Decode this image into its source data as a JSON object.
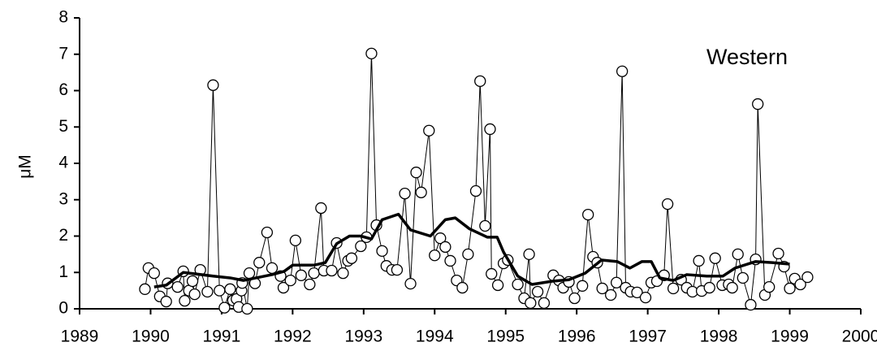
{
  "chart_data": {
    "type": "line",
    "annotation": "Western",
    "ylabel": "μM",
    "xlim": [
      1989,
      2000
    ],
    "xticks": [
      1989,
      1990,
      1991,
      1992,
      1993,
      1994,
      1995,
      1996,
      1997,
      1998,
      1999,
      2000
    ],
    "ylim": [
      0,
      8
    ],
    "yticks": [
      0,
      1,
      2,
      3,
      4,
      5,
      6,
      7,
      8
    ],
    "grid": false,
    "series": [
      {
        "color": "#000000",
        "marker": "circle",
        "line_width": 1,
        "x": [
          1989.92,
          1989.97,
          1990.05,
          1990.13,
          1990.22,
          1990.24,
          1990.38,
          1990.46,
          1990.48,
          1990.54,
          1990.59,
          1990.62,
          1990.7,
          1990.8,
          1990.88,
          1990.97,
          1991.04,
          1991.12,
          1991.16,
          1991.21,
          1991.24,
          1991.28,
          1991.29,
          1991.36,
          1991.39,
          1991.47,
          1991.53,
          1991.64,
          1991.71,
          1991.83,
          1991.87,
          1991.97,
          1992.04,
          1992.12,
          1992.24,
          1992.3,
          1992.4,
          1992.44,
          1992.55,
          1992.62,
          1992.71,
          1992.78,
          1992.83,
          1992.96,
          1993.04,
          1993.11,
          1993.18,
          1993.26,
          1993.32,
          1993.4,
          1993.47,
          1993.58,
          1993.66,
          1993.74,
          1993.81,
          1993.92,
          1994.0,
          1994.08,
          1994.15,
          1994.22,
          1994.31,
          1994.39,
          1994.47,
          1994.58,
          1994.64,
          1994.71,
          1994.78,
          1994.8,
          1994.89,
          1994.97,
          1995.03,
          1995.17,
          1995.26,
          1995.33,
          1995.35,
          1995.45,
          1995.54,
          1995.67,
          1995.75,
          1995.81,
          1995.89,
          1995.97,
          1996.08,
          1996.16,
          1996.23,
          1996.29,
          1996.36,
          1996.48,
          1996.56,
          1996.64,
          1996.69,
          1996.76,
          1996.85,
          1996.97,
          1997.05,
          1997.13,
          1997.23,
          1997.28,
          1997.36,
          1997.47,
          1997.55,
          1997.63,
          1997.72,
          1997.76,
          1997.87,
          1997.95,
          1998.05,
          1998.14,
          1998.19,
          1998.27,
          1998.34,
          1998.45,
          1998.52,
          1998.55,
          1998.65,
          1998.71,
          1998.84,
          1998.92,
          1999.0,
          1999.07,
          1999.15,
          1999.25
        ],
        "values": [
          0.54,
          1.12,
          0.98,
          0.34,
          0.2,
          0.7,
          0.6,
          1.03,
          0.22,
          0.5,
          0.76,
          0.4,
          1.07,
          0.47,
          6.15,
          0.5,
          0.03,
          0.54,
          0.23,
          0.27,
          0.05,
          0.5,
          0.71,
          0.0,
          0.98,
          0.7,
          1.27,
          2.1,
          1.12,
          0.9,
          0.58,
          0.78,
          1.88,
          0.92,
          0.67,
          0.98,
          2.77,
          1.05,
          1.05,
          1.81,
          0.98,
          1.32,
          1.39,
          1.72,
          1.97,
          7.02,
          2.3,
          1.59,
          1.18,
          1.07,
          1.07,
          3.17,
          0.69,
          3.75,
          3.2,
          4.9,
          1.47,
          1.94,
          1.7,
          1.32,
          0.78,
          0.58,
          1.5,
          3.24,
          6.26,
          2.28,
          4.94,
          0.96,
          0.65,
          1.25,
          1.34,
          0.67,
          0.29,
          1.5,
          0.16,
          0.47,
          0.16,
          0.92,
          0.78,
          0.58,
          0.74,
          0.29,
          0.63,
          2.59,
          1.43,
          1.27,
          0.56,
          0.38,
          0.72,
          6.53,
          0.58,
          0.47,
          0.45,
          0.31,
          0.72,
          0.76,
          0.92,
          2.88,
          0.56,
          0.8,
          0.58,
          0.47,
          1.32,
          0.49,
          0.58,
          1.39,
          0.65,
          0.67,
          0.58,
          1.5,
          0.85,
          0.11,
          1.36,
          5.63,
          0.38,
          0.6,
          1.52,
          1.16,
          0.56,
          0.83,
          0.67,
          0.87
        ]
      },
      {
        "color": "#000000",
        "marker": null,
        "line_width": 3.5,
        "x": [
          1990.05,
          1990.22,
          1990.46,
          1990.88,
          1991.12,
          1991.31,
          1991.71,
          1991.88,
          1992.0,
          1992.3,
          1992.46,
          1992.62,
          1992.8,
          1992.96,
          1993.11,
          1993.26,
          1993.49,
          1993.66,
          1993.94,
          1994.15,
          1994.29,
          1994.49,
          1994.74,
          1994.88,
          1994.97,
          1995.17,
          1995.37,
          1995.66,
          1995.89,
          1996.12,
          1996.35,
          1996.57,
          1996.75,
          1996.92,
          1997.05,
          1997.17,
          1997.36,
          1997.55,
          1997.83,
          1998.06,
          1998.23,
          1998.52,
          1998.75,
          1999.0
        ],
        "values": [
          0.6,
          0.65,
          1.0,
          0.9,
          0.85,
          0.78,
          0.94,
          1.03,
          1.2,
          1.2,
          1.27,
          1.79,
          2.0,
          2.0,
          1.92,
          2.45,
          2.6,
          2.17,
          2.0,
          2.45,
          2.5,
          2.2,
          1.97,
          1.97,
          1.56,
          0.9,
          0.67,
          0.76,
          0.8,
          0.98,
          1.34,
          1.3,
          1.12,
          1.3,
          1.3,
          0.85,
          0.78,
          0.94,
          0.9,
          0.9,
          1.12,
          1.3,
          1.27,
          1.23
        ]
      }
    ]
  }
}
